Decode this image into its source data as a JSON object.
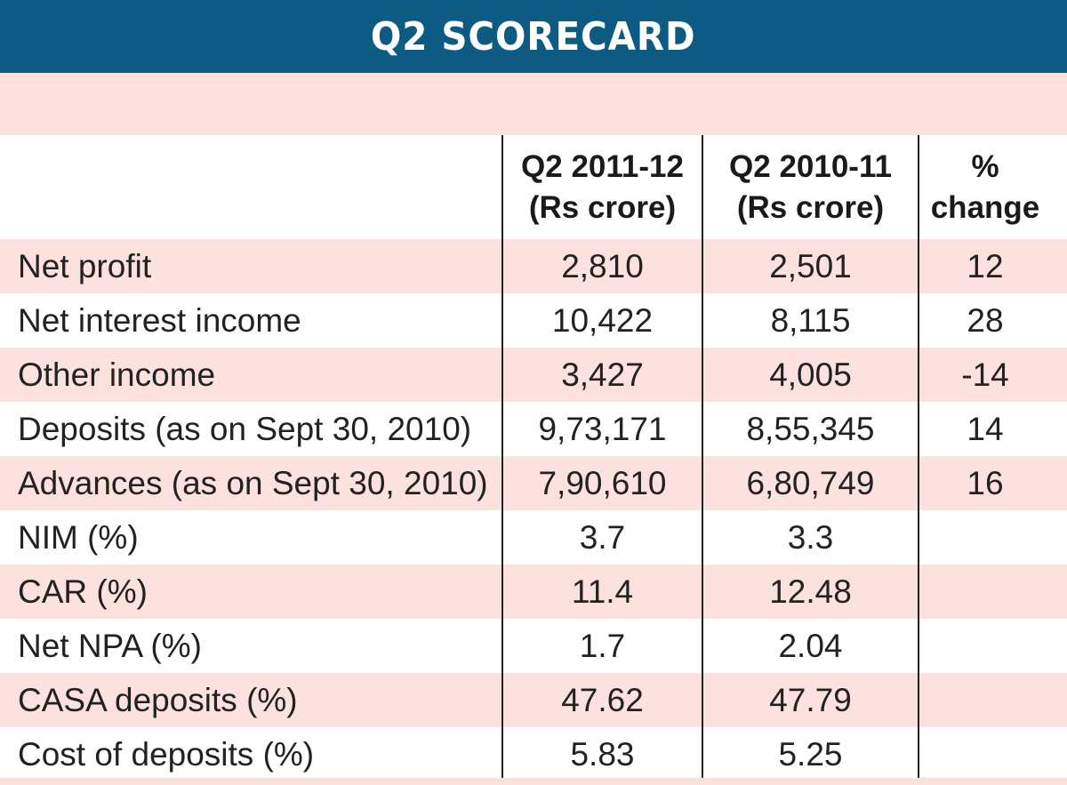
{
  "title": "Q2 SCORECARD",
  "colors": {
    "title_bar": "#0d5a82",
    "row_pink": "#fce1df",
    "row_white": "#ffffff",
    "text": "#222222"
  },
  "chart_data": {
    "type": "table",
    "title": "Q2 SCORECARD",
    "columns": [
      {
        "line1": "",
        "line2": ""
      },
      {
        "line1": "Q2 2011-12",
        "line2": "(Rs crore)"
      },
      {
        "line1": "Q2 2010-11",
        "line2": "(Rs crore)"
      },
      {
        "line1": "%",
        "line2": "change"
      }
    ],
    "rows": [
      {
        "label": "Net profit",
        "q2_2011_12": "2,810",
        "q2_2010_11": "2,501",
        "change": "12"
      },
      {
        "label": "Net interest income",
        "q2_2011_12": "10,422",
        "q2_2010_11": "8,115",
        "change": "28"
      },
      {
        "label": "Other income",
        "q2_2011_12": "3,427",
        "q2_2010_11": "4,005",
        "change": "-14"
      },
      {
        "label": "Deposits (as on Sept 30, 2010)",
        "q2_2011_12": "9,73,171",
        "q2_2010_11": "8,55,345",
        "change": "14"
      },
      {
        "label": "Advances (as on Sept 30, 2010)",
        "q2_2011_12": "7,90,610",
        "q2_2010_11": "6,80,749",
        "change": "16"
      },
      {
        "label": "NIM (%)",
        "q2_2011_12": "3.7",
        "q2_2010_11": "3.3",
        "change": ""
      },
      {
        "label": "CAR (%)",
        "q2_2011_12": "11.4",
        "q2_2010_11": "12.48",
        "change": ""
      },
      {
        "label": "Net NPA (%)",
        "q2_2011_12": "1.7",
        "q2_2010_11": "2.04",
        "change": ""
      },
      {
        "label": "CASA deposits (%)",
        "q2_2011_12": "47.62",
        "q2_2010_11": "47.79",
        "change": ""
      },
      {
        "label": "Cost of deposits (%)",
        "q2_2011_12": "5.83",
        "q2_2010_11": "5.25",
        "change": ""
      }
    ]
  }
}
